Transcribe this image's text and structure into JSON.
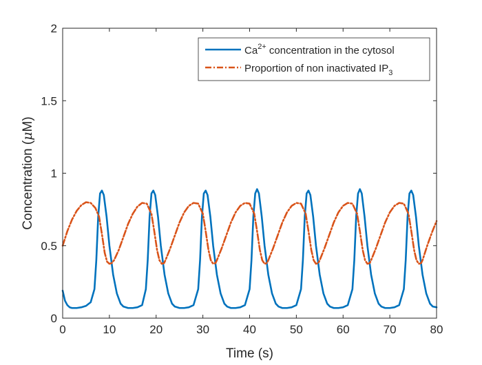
{
  "chart_data": {
    "type": "line",
    "xlabel": "Time (s)",
    "ylabel": {
      "prefix": "Concentration (",
      "greek": "μ",
      "suffix": "M)"
    },
    "xlim": [
      0,
      80
    ],
    "ylim": [
      0,
      2
    ],
    "xticks": [
      0,
      10,
      20,
      30,
      40,
      50,
      60,
      70,
      80
    ],
    "xtick_labels": [
      "0",
      "10",
      "20",
      "30",
      "40",
      "50",
      "60",
      "70",
      "80"
    ],
    "yticks": [
      0,
      0.5,
      1,
      1.5,
      2
    ],
    "ytick_labels": [
      "0",
      "0.5",
      "1",
      "1.5",
      "2"
    ],
    "grid": false,
    "legend_placement": "top-right",
    "series": [
      {
        "legend": {
          "base": "Ca",
          "sup": "2+",
          "rest": " concentration in the cytosol"
        },
        "color": "#0072BD",
        "style": "solid",
        "x": [
          0,
          0.5,
          1,
          1.5,
          2,
          3,
          4,
          5,
          6,
          6.8,
          7.2,
          7.6,
          8,
          8.4,
          8.8,
          9.4,
          10,
          10.8,
          11.6,
          12.4,
          13,
          14,
          15,
          16,
          17,
          17.8,
          18.2,
          18.6,
          19,
          19.4,
          19.8,
          20.4,
          21,
          21.8,
          22.6,
          23.4,
          24,
          25,
          26,
          27,
          28,
          29,
          29.4,
          29.8,
          30.2,
          30.6,
          31,
          31.6,
          32.2,
          33,
          33.8,
          34.6,
          35.2,
          36,
          37,
          38,
          39,
          40,
          40.4,
          40.8,
          41.2,
          41.6,
          42,
          42.6,
          43.2,
          44,
          44.8,
          45.6,
          46.2,
          47,
          48,
          49,
          50,
          51,
          51.4,
          51.8,
          52.2,
          52.6,
          53,
          53.6,
          54.2,
          55,
          55.8,
          56.6,
          57.2,
          58,
          59,
          60,
          61,
          62,
          62.4,
          62.8,
          63.2,
          63.6,
          64,
          64.6,
          65.2,
          66,
          66.8,
          67.6,
          68.2,
          69,
          70,
          71,
          72,
          73,
          73.4,
          73.8,
          74.2,
          74.6,
          75,
          75.6,
          76.2,
          77,
          77.8,
          78.6,
          79.2,
          80
        ],
        "y": [
          0.19,
          0.12,
          0.09,
          0.075,
          0.07,
          0.07,
          0.075,
          0.085,
          0.11,
          0.2,
          0.4,
          0.7,
          0.86,
          0.88,
          0.85,
          0.7,
          0.5,
          0.3,
          0.17,
          0.1,
          0.08,
          0.07,
          0.07,
          0.075,
          0.09,
          0.2,
          0.4,
          0.7,
          0.86,
          0.88,
          0.85,
          0.7,
          0.5,
          0.3,
          0.17,
          0.1,
          0.08,
          0.07,
          0.07,
          0.075,
          0.09,
          0.2,
          0.4,
          0.7,
          0.86,
          0.88,
          0.85,
          0.7,
          0.5,
          0.3,
          0.17,
          0.1,
          0.08,
          0.07,
          0.07,
          0.075,
          0.09,
          0.2,
          0.4,
          0.7,
          0.86,
          0.89,
          0.86,
          0.7,
          0.5,
          0.3,
          0.17,
          0.1,
          0.08,
          0.07,
          0.07,
          0.075,
          0.09,
          0.2,
          0.4,
          0.7,
          0.86,
          0.88,
          0.85,
          0.7,
          0.5,
          0.3,
          0.17,
          0.1,
          0.08,
          0.07,
          0.07,
          0.075,
          0.09,
          0.2,
          0.4,
          0.7,
          0.86,
          0.89,
          0.86,
          0.7,
          0.5,
          0.3,
          0.17,
          0.1,
          0.08,
          0.07,
          0.07,
          0.075,
          0.09,
          0.2,
          0.4,
          0.7,
          0.86,
          0.88,
          0.85,
          0.7,
          0.5,
          0.3,
          0.17,
          0.1,
          0.08,
          0.075
        ]
      },
      {
        "legend": {
          "base": "Proportion of non inactivated IP",
          "sub": "3"
        },
        "color": "#D95319",
        "style": "dashdot",
        "x": [
          0,
          1,
          2,
          3,
          4,
          5,
          6,
          7,
          7.8,
          8.4,
          9,
          9.5,
          10,
          10.5,
          11,
          12,
          13,
          14,
          15,
          16,
          17,
          18,
          19,
          19.6,
          20.2,
          20.7,
          21.2,
          21.7,
          22,
          23,
          24,
          25,
          26,
          27,
          28,
          29,
          30,
          30.6,
          31.2,
          31.7,
          32.2,
          32.7,
          33,
          34,
          35,
          36,
          37,
          38,
          39,
          40,
          41,
          41.6,
          42.2,
          42.7,
          43.2,
          43.7,
          44,
          45,
          46,
          47,
          48,
          49,
          50,
          51,
          52,
          52.6,
          53.2,
          53.7,
          54.2,
          54.7,
          55,
          56,
          57,
          58,
          59,
          60,
          61,
          62,
          63,
          63.6,
          64.2,
          64.7,
          65.2,
          65.7,
          66,
          67,
          68,
          69,
          70,
          71,
          72,
          73,
          74,
          74.6,
          75.2,
          75.7,
          76.2,
          76.7,
          77,
          78,
          79,
          80
        ],
        "y": [
          0.5,
          0.6,
          0.68,
          0.74,
          0.78,
          0.8,
          0.795,
          0.76,
          0.7,
          0.58,
          0.45,
          0.39,
          0.375,
          0.38,
          0.4,
          0.47,
          0.56,
          0.65,
          0.72,
          0.77,
          0.795,
          0.79,
          0.72,
          0.6,
          0.47,
          0.4,
          0.375,
          0.38,
          0.4,
          0.48,
          0.57,
          0.66,
          0.73,
          0.775,
          0.795,
          0.79,
          0.72,
          0.6,
          0.47,
          0.4,
          0.375,
          0.38,
          0.4,
          0.48,
          0.57,
          0.66,
          0.73,
          0.775,
          0.795,
          0.79,
          0.72,
          0.6,
          0.47,
          0.4,
          0.375,
          0.38,
          0.4,
          0.48,
          0.57,
          0.66,
          0.73,
          0.775,
          0.795,
          0.79,
          0.72,
          0.6,
          0.47,
          0.4,
          0.375,
          0.38,
          0.4,
          0.48,
          0.57,
          0.66,
          0.73,
          0.775,
          0.795,
          0.79,
          0.72,
          0.6,
          0.47,
          0.4,
          0.375,
          0.38,
          0.4,
          0.48,
          0.57,
          0.66,
          0.73,
          0.775,
          0.795,
          0.79,
          0.72,
          0.6,
          0.47,
          0.4,
          0.375,
          0.38,
          0.4,
          0.5,
          0.59,
          0.67
        ]
      }
    ]
  }
}
